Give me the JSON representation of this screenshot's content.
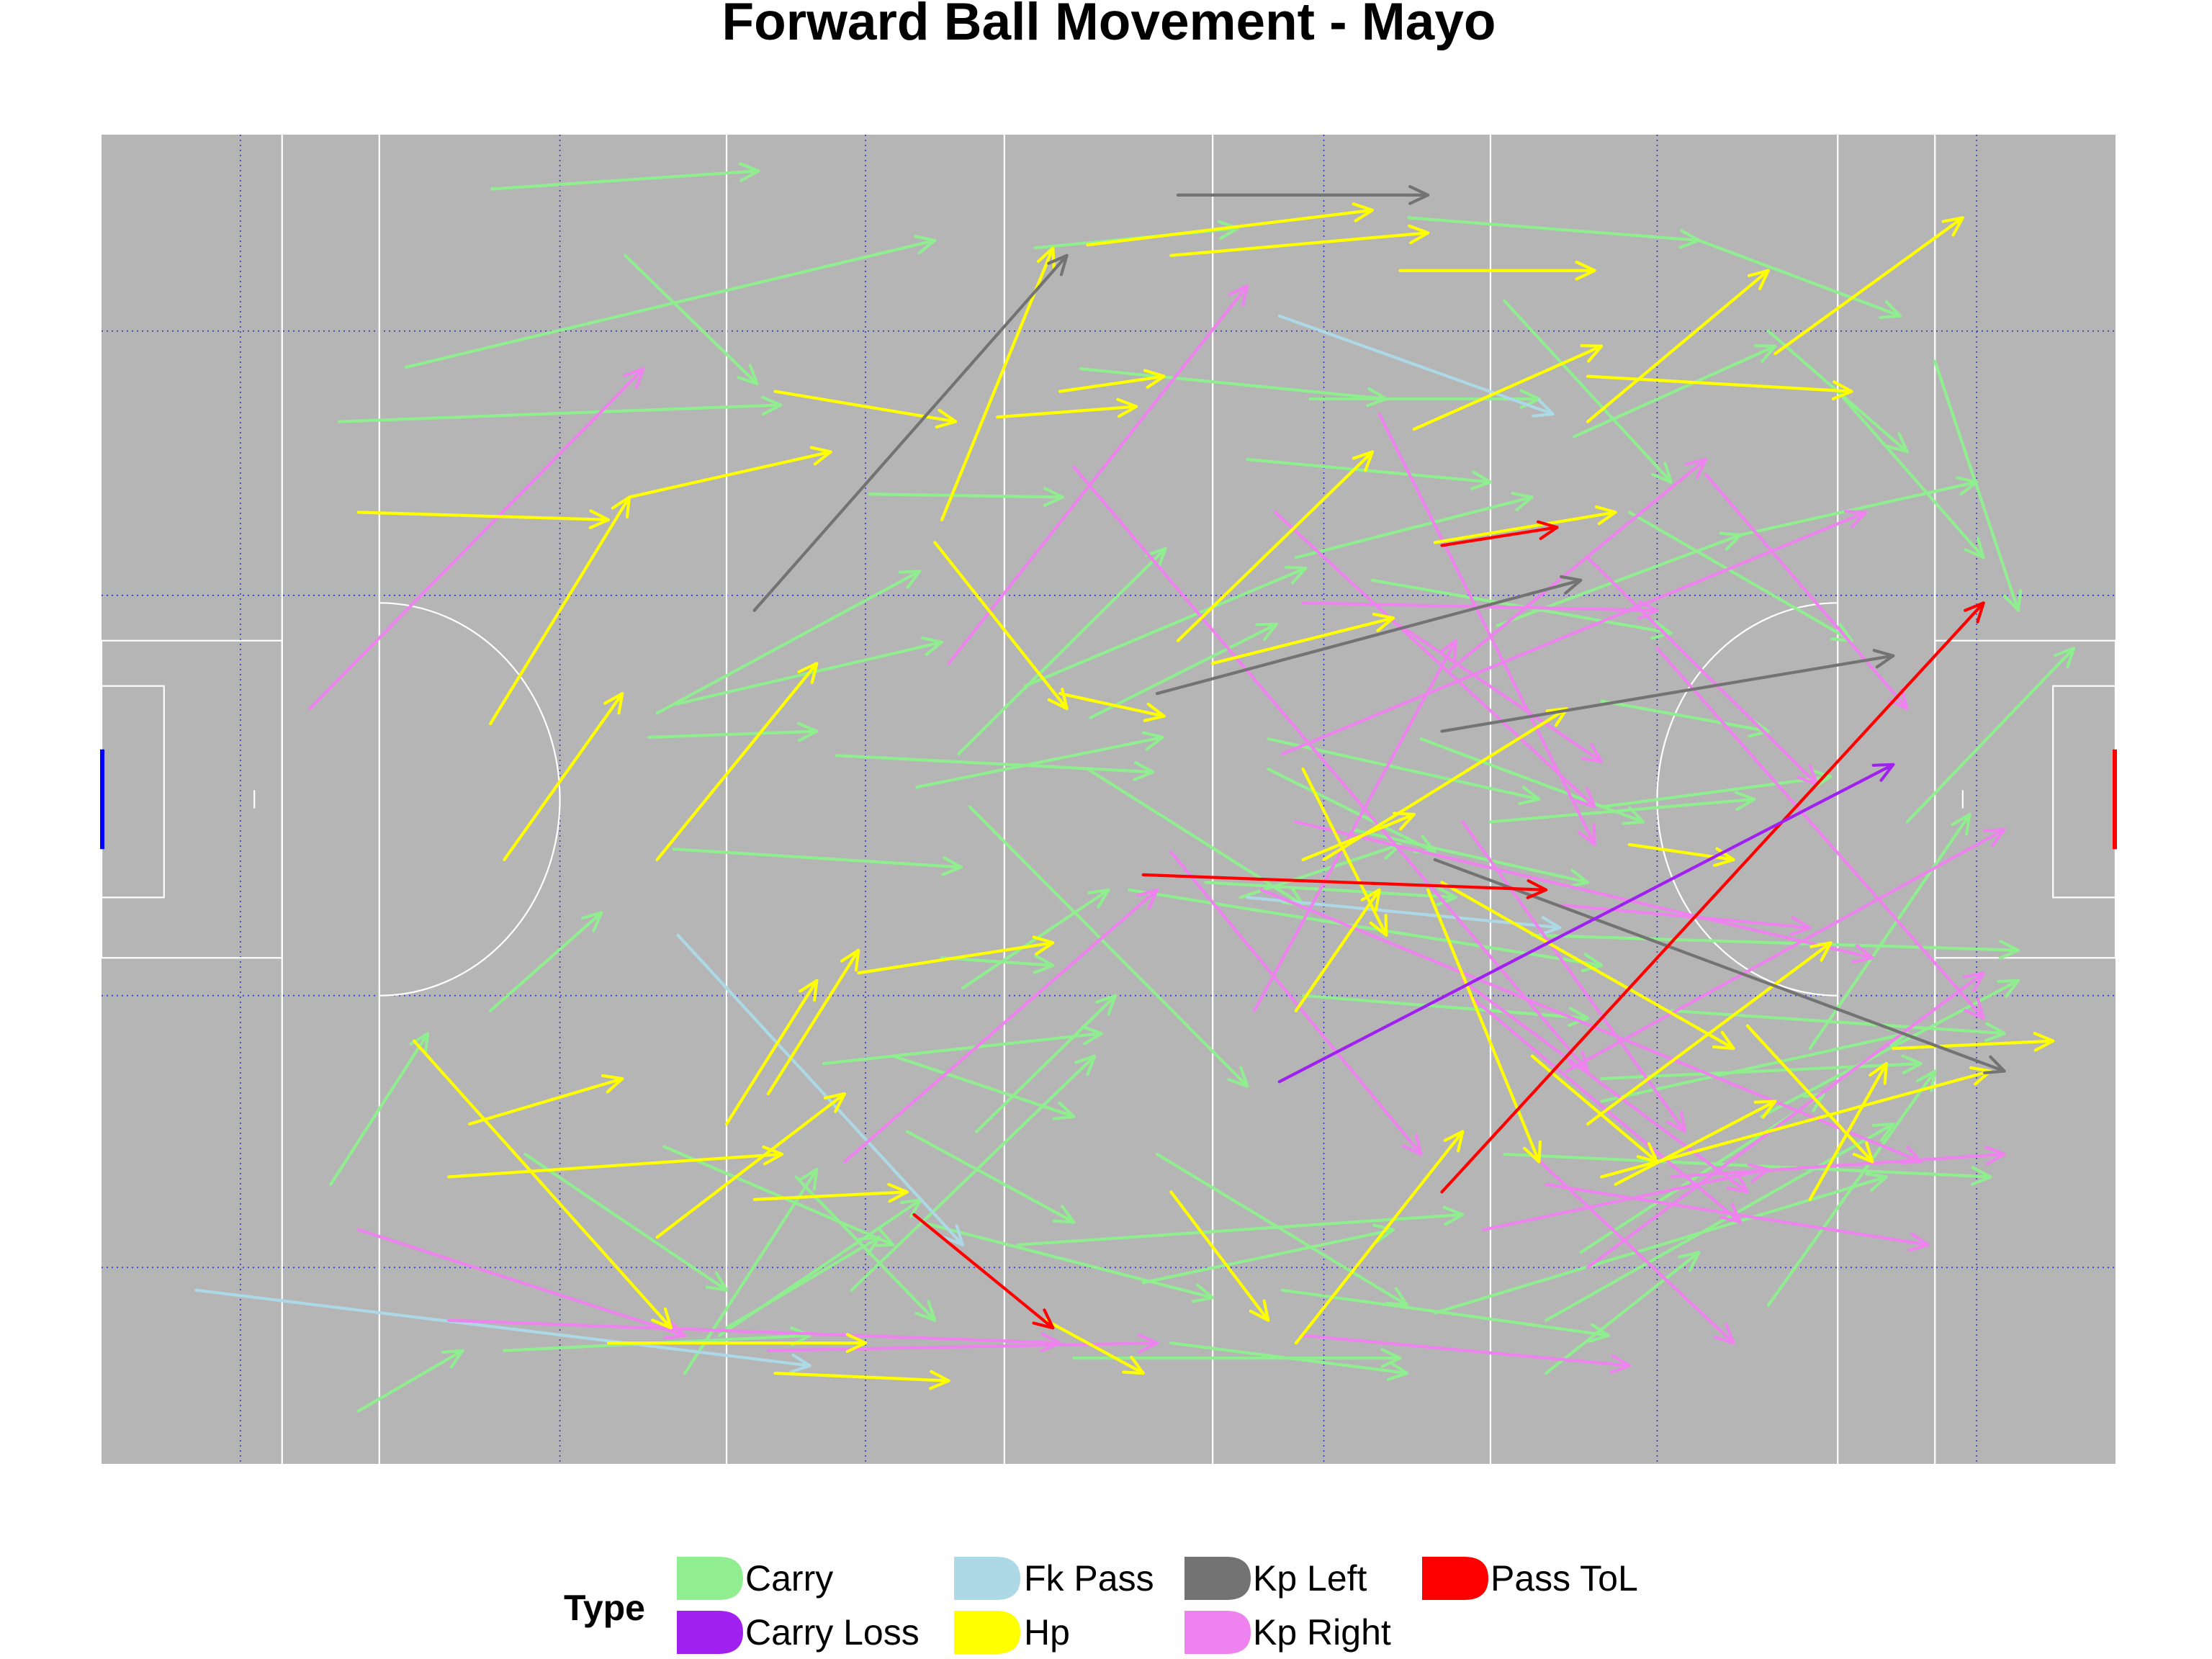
{
  "chart_data": {
    "type": "scatter",
    "title": "Forward Ball Movement - Mayo",
    "xlabel": "",
    "ylabel": "",
    "xlim": [
      0,
      145
    ],
    "ylim": [
      0,
      88
    ],
    "grid": true,
    "legend": {
      "title": "Type",
      "position": "bottom"
    },
    "type_colors": {
      "Carry": "#90ee90",
      "Carry Loss": "#a020f0",
      "Fk Pass": "#add8e6",
      "Hp": "#ffff00",
      "Kp Left": "#737373",
      "Kp Right": "#ee82ee",
      "Pass ToL": "#ff0000"
    },
    "legend_items": [
      {
        "label": "Carry",
        "type": "Carry"
      },
      {
        "label": "Carry Loss",
        "type": "Carry Loss"
      },
      {
        "label": "Fk Pass",
        "type": "Fk Pass"
      },
      {
        "label": "Hp",
        "type": "Hp"
      },
      {
        "label": "Kp Left",
        "type": "Kp Left"
      },
      {
        "label": "Kp Right",
        "type": "Kp Right"
      },
      {
        "label": "Pass ToL",
        "type": "Pass ToL"
      }
    ],
    "series": [
      {
        "type": "Carry",
        "segments": [
          [
            28.1,
            84.4,
            47.3,
            85.6
          ],
          [
            21.9,
            72.6,
            60.0,
            81.0
          ],
          [
            37.7,
            80.0,
            47.2,
            71.5
          ],
          [
            17.1,
            69.0,
            48.9,
            70.1
          ],
          [
            67.2,
            80.5,
            81.8,
            81.8
          ],
          [
            94.1,
            82.5,
            115.0,
            81.0
          ],
          [
            55.3,
            64.2,
            69.2,
            64.0
          ],
          [
            40.0,
            49.7,
            58.9,
            59.1
          ],
          [
            41.4,
            50.3,
            60.5,
            54.4
          ],
          [
            39.4,
            48.1,
            51.5,
            48.5
          ],
          [
            52.9,
            46.9,
            75.7,
            45.8
          ],
          [
            41.2,
            40.7,
            61.9,
            39.5
          ],
          [
            58.7,
            44.8,
            76.4,
            48.1
          ],
          [
            61.7,
            47.0,
            76.6,
            60.6
          ],
          [
            71.2,
            49.4,
            84.6,
            55.6
          ],
          [
            66.5,
            51.5,
            86.7,
            59.3
          ],
          [
            82.5,
            66.5,
            100.0,
            65.0
          ],
          [
            86.0,
            60.0,
            103.0,
            64.0
          ],
          [
            100.5,
            55.5,
            118.0,
            61.5
          ],
          [
            91.5,
            58.5,
            113.0,
            55.0
          ],
          [
            106.0,
            68.0,
            120.5,
            74.0
          ],
          [
            110.0,
            63.0,
            126.0,
            54.5
          ],
          [
            120.0,
            75.0,
            130.0,
            67.0
          ],
          [
            101.0,
            77.0,
            113.0,
            65.0
          ],
          [
            115.0,
            81.0,
            129.5,
            76.0
          ],
          [
            125.0,
            71.0,
            135.5,
            60.0
          ],
          [
            70.5,
            72.5,
            92.5,
            70.5
          ],
          [
            87.0,
            70.5,
            103.5,
            70.5
          ],
          [
            108.0,
            50.5,
            120.0,
            48.5
          ],
          [
            95.0,
            48.0,
            111.0,
            42.5
          ],
          [
            118.0,
            61.5,
            135.0,
            65.0
          ],
          [
            90.0,
            42.0,
            107.0,
            38.5
          ],
          [
            84.0,
            48.0,
            103.5,
            44.0
          ],
          [
            79.5,
            38.5,
            97.5,
            37.5
          ],
          [
            62.5,
            43.5,
            82.5,
            25.0
          ],
          [
            74.0,
            38.0,
            108.0,
            33.0
          ],
          [
            103.0,
            35.0,
            138.0,
            34.0
          ],
          [
            82.0,
            37.5,
            93.5,
            41.0
          ],
          [
            57.0,
            27.0,
            70.0,
            23.0
          ],
          [
            52.0,
            26.5,
            72.0,
            28.5
          ],
          [
            63.0,
            22.0,
            73.0,
            31.0
          ],
          [
            58.0,
            22.0,
            70.0,
            16.0
          ],
          [
            59.0,
            16.0,
            80.0,
            11.0
          ],
          [
            50.0,
            19.0,
            60.0,
            9.5
          ],
          [
            66.0,
            14.5,
            98.0,
            16.5
          ],
          [
            76.0,
            20.5,
            94.0,
            10.5
          ],
          [
            40.5,
            21.0,
            57.0,
            14.5
          ],
          [
            30.5,
            20.5,
            45.0,
            11.5
          ],
          [
            28.0,
            30.0,
            36.0,
            36.5
          ],
          [
            16.5,
            18.5,
            23.5,
            28.5
          ],
          [
            18.5,
            3.5,
            26.0,
            7.5
          ],
          [
            29.0,
            7.5,
            51.0,
            8.5
          ],
          [
            42.0,
            6.0,
            51.5,
            19.5
          ],
          [
            44.5,
            8.5,
            59.0,
            17.5
          ],
          [
            75.0,
            12.0,
            93.0,
            15.5
          ],
          [
            77.0,
            8.0,
            94.0,
            6.0
          ],
          [
            70.0,
            7.0,
            93.5,
            7.0
          ],
          [
            85.0,
            11.5,
            108.5,
            8.5
          ],
          [
            96.0,
            10.0,
            128.5,
            19.0
          ],
          [
            104.0,
            9.5,
            129.0,
            22.5
          ],
          [
            106.5,
            14.0,
            124.0,
            24.5
          ],
          [
            104.0,
            6.0,
            115.0,
            14.0
          ],
          [
            108.0,
            25.5,
            131.0,
            26.5
          ],
          [
            101.0,
            20.5,
            136.0,
            19.0
          ],
          [
            113.0,
            30.0,
            137.0,
            28.5
          ],
          [
            108.0,
            24.0,
            130.0,
            28.5
          ],
          [
            119.5,
            23.0,
            138.0,
            32.0
          ],
          [
            123.0,
            27.5,
            134.5,
            43.0
          ],
          [
            120.0,
            10.5,
            132.0,
            26.0
          ],
          [
            100.0,
            42.5,
            119.0,
            44.0
          ],
          [
            108.0,
            43.5,
            124.5,
            45.5
          ],
          [
            132.0,
            73.0,
            138.0,
            56.5
          ],
          [
            130.0,
            42.5,
            142.0,
            54.0
          ],
          [
            71.0,
            46.0,
            86.5,
            37.0
          ],
          [
            60.5,
            33.5,
            68.5,
            33.0
          ],
          [
            62.0,
            31.5,
            72.5,
            38.0
          ],
          [
            45.0,
            9.0,
            56.0,
            15.0
          ],
          [
            84.0,
            46.0,
            96.0,
            40.5
          ],
          [
            86.5,
            31.0,
            107.0,
            29.5
          ],
          [
            54.0,
            11.5,
            71.5,
            27.0
          ]
        ]
      },
      {
        "type": "Carry Loss",
        "segments": [
          [
            84.8,
            25.3,
            129.0,
            46.3
          ]
        ]
      },
      {
        "type": "Fk Pass",
        "segments": [
          [
            84.8,
            76.0,
            104.5,
            69.5
          ],
          [
            41.5,
            35.0,
            62.0,
            14.5
          ],
          [
            6.8,
            11.5,
            51.0,
            6.5
          ],
          [
            82.5,
            37.5,
            105.0,
            35.5
          ]
        ]
      },
      {
        "type": "Hp",
        "segments": [
          [
            71.0,
            80.7,
            91.5,
            83.0
          ],
          [
            77.0,
            80.0,
            95.5,
            81.5
          ],
          [
            93.5,
            79.0,
            107.5,
            79.0
          ],
          [
            64.5,
            69.3,
            74.5,
            70.0
          ],
          [
            18.5,
            63.0,
            36.5,
            62.5
          ],
          [
            28.0,
            49.0,
            38.0,
            64.0
          ],
          [
            38.0,
            64.0,
            52.5,
            67.0
          ],
          [
            29.0,
            40.0,
            37.5,
            51.0
          ],
          [
            40.0,
            40.0,
            51.5,
            53.0
          ],
          [
            60.5,
            62.5,
            68.5,
            80.5
          ],
          [
            48.5,
            71.0,
            61.5,
            69.0
          ],
          [
            69.0,
            71.0,
            76.5,
            72.0
          ],
          [
            60.0,
            61.0,
            69.5,
            50.0
          ],
          [
            69.0,
            51.0,
            76.5,
            49.5
          ],
          [
            77.5,
            54.5,
            91.5,
            67.0
          ],
          [
            94.5,
            68.5,
            108.0,
            74.0
          ],
          [
            107.0,
            69.0,
            120.0,
            79.0
          ],
          [
            120.5,
            73.5,
            134.0,
            82.5
          ],
          [
            107.0,
            72.0,
            126.0,
            71.0
          ],
          [
            96.0,
            61.0,
            109.0,
            63.0
          ],
          [
            86.5,
            40.0,
            94.5,
            43.0
          ],
          [
            86.5,
            46.0,
            92.5,
            35.0
          ],
          [
            86.0,
            30.0,
            92.0,
            38.0
          ],
          [
            88.0,
            40.0,
            105.5,
            50.0
          ],
          [
            110.0,
            41.0,
            117.5,
            40.0
          ],
          [
            96.5,
            38.5,
            117.5,
            27.5
          ],
          [
            118.5,
            29.0,
            127.5,
            20.0
          ],
          [
            107.0,
            22.5,
            124.5,
            34.5
          ],
          [
            103.0,
            27.0,
            112.0,
            20.0
          ],
          [
            109.0,
            18.5,
            120.5,
            24.0
          ],
          [
            123.0,
            17.5,
            128.5,
            26.5
          ],
          [
            129.0,
            27.5,
            140.5,
            28.0
          ],
          [
            108.0,
            19.0,
            136.0,
            26.0
          ],
          [
            95.5,
            38.0,
            103.5,
            20.0
          ],
          [
            86.0,
            8.0,
            98.0,
            22.0
          ],
          [
            77.0,
            18.0,
            84.0,
            9.5
          ],
          [
            47.0,
            17.5,
            58.0,
            18.0
          ],
          [
            25.0,
            19.0,
            49.0,
            20.5
          ],
          [
            40.0,
            15.0,
            53.5,
            24.5
          ],
          [
            22.5,
            28.0,
            41.0,
            9.0
          ],
          [
            36.5,
            8.0,
            55.0,
            8.0
          ],
          [
            48.5,
            6.0,
            61.0,
            5.5
          ],
          [
            68.0,
            9.5,
            75.0,
            6.0
          ],
          [
            26.5,
            22.5,
            37.5,
            25.5
          ],
          [
            45.0,
            22.5,
            51.5,
            32.0
          ],
          [
            48.0,
            24.5,
            54.5,
            34.0
          ],
          [
            54.5,
            32.5,
            68.5,
            34.5
          ],
          [
            80.0,
            53.0,
            93.0,
            56.0
          ]
        ]
      },
      {
        "type": "Kp Left",
        "segments": [
          [
            77.5,
            84.0,
            95.5,
            84.0
          ],
          [
            47.0,
            56.5,
            69.5,
            80.0
          ],
          [
            76.0,
            51.0,
            106.5,
            58.5
          ],
          [
            96.5,
            48.5,
            129.0,
            53.5
          ],
          [
            96.0,
            40.0,
            137.0,
            26.0
          ]
        ]
      },
      {
        "type": "Kp Right",
        "segments": [
          [
            15.0,
            50.0,
            39.0,
            72.5
          ],
          [
            61.0,
            53.0,
            82.5,
            78.0
          ],
          [
            70.0,
            66.0,
            107.0,
            26.0
          ],
          [
            92.0,
            69.5,
            107.5,
            41.0
          ],
          [
            84.5,
            63.0,
            107.5,
            43.5
          ],
          [
            86.5,
            57.0,
            112.0,
            56.5
          ],
          [
            93.5,
            55.5,
            108.0,
            46.5
          ],
          [
            85.0,
            47.0,
            127.0,
            63.0
          ],
          [
            86.0,
            42.5,
            127.5,
            33.5
          ],
          [
            112.0,
            54.0,
            135.5,
            29.5
          ],
          [
            115.5,
            65.5,
            130.0,
            50.0
          ],
          [
            107.0,
            60.0,
            123.5,
            45.0
          ],
          [
            105.0,
            37.0,
            123.0,
            35.5
          ],
          [
            83.5,
            38.0,
            131.0,
            20.0
          ],
          [
            98.0,
            42.5,
            114.0,
            22.0
          ],
          [
            98.0,
            32.0,
            118.5,
            18.0
          ],
          [
            105.5,
            26.0,
            137.0,
            42.0
          ],
          [
            77.0,
            40.5,
            95.0,
            20.5
          ],
          [
            53.5,
            20.0,
            76.0,
            38.0
          ],
          [
            18.5,
            15.5,
            42.0,
            8.5
          ],
          [
            25.0,
            9.5,
            69.0,
            8.0
          ],
          [
            48.0,
            7.5,
            76.0,
            8.0
          ],
          [
            86.5,
            8.5,
            110.0,
            6.5
          ],
          [
            83.0,
            30.0,
            97.5,
            54.5
          ],
          [
            98.5,
            31.0,
            118.0,
            16.0
          ],
          [
            99.5,
            15.5,
            120.0,
            19.5
          ],
          [
            103.0,
            20.5,
            117.5,
            8.0
          ],
          [
            104.0,
            18.5,
            131.5,
            14.5
          ],
          [
            113.0,
            19.0,
            137.0,
            20.5
          ],
          [
            107.0,
            13.0,
            135.5,
            32.5
          ],
          [
            97.0,
            52.5,
            115.5,
            66.5
          ]
        ]
      },
      {
        "type": "Pass ToL",
        "segments": [
          [
            96.5,
            60.8,
            104.8,
            62.0
          ],
          [
            75.0,
            39.0,
            104.0,
            38.0
          ],
          [
            58.5,
            16.5,
            68.5,
            9.0
          ],
          [
            96.5,
            18.0,
            135.5,
            57.0
          ]
        ]
      }
    ]
  }
}
